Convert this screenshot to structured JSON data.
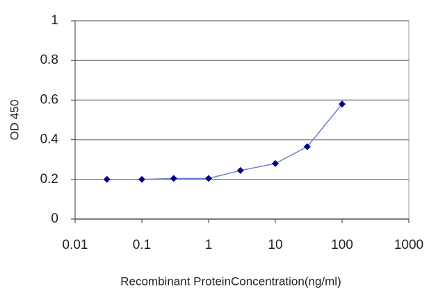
{
  "chart_data": {
    "type": "line",
    "x_label": "Recombinant ProteinConcentration(ng/ml)",
    "y_label": "OD 450",
    "x": [
      0.03,
      0.1,
      0.3,
      1,
      3,
      10,
      30,
      100
    ],
    "series": [
      {
        "color": "#00008b",
        "values": [
          0.2,
          0.2,
          0.205,
          0.205,
          0.245,
          0.28,
          0.365,
          0.58
        ]
      }
    ],
    "line_color": "#6f7fcf",
    "xscale": "log",
    "xlim": [
      0.01,
      1000
    ],
    "xticks": [
      0.01,
      0.1,
      1,
      10,
      100,
      1000
    ],
    "ylim": [
      0,
      1
    ],
    "yticks": [
      0,
      0.2,
      0.4,
      0.6,
      0.8,
      1
    ],
    "grid": true
  }
}
